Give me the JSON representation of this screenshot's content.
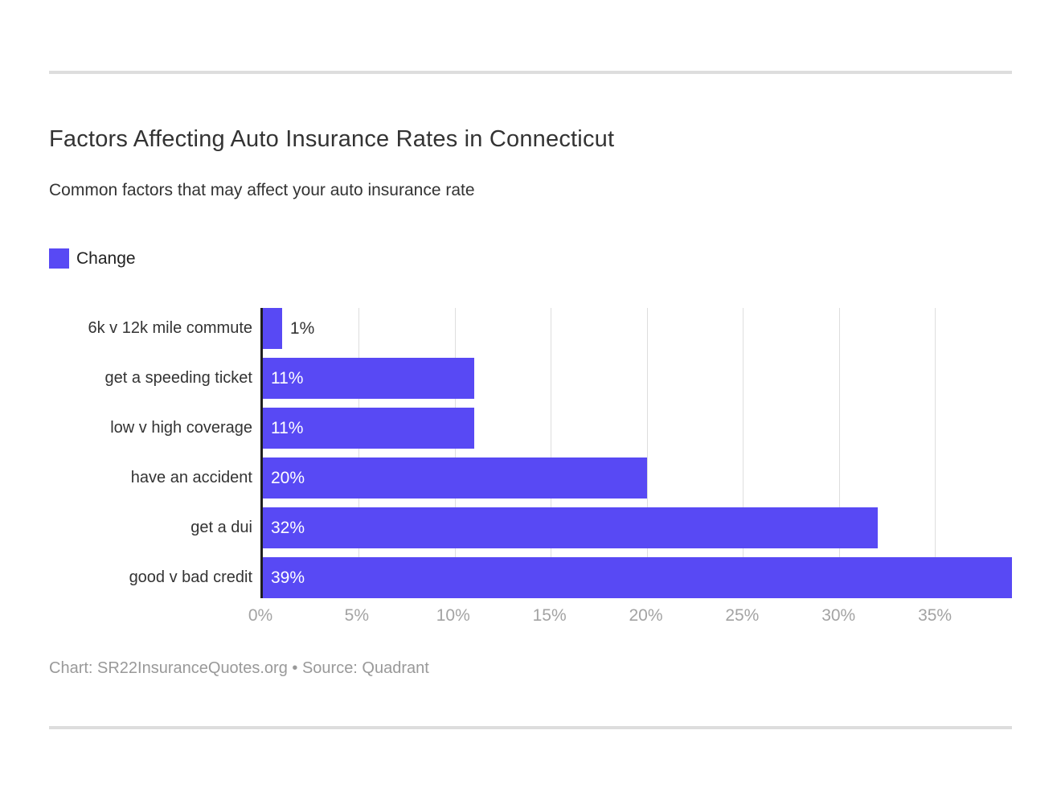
{
  "page": {
    "title": "Factors Affecting Auto Insurance Rates in Connecticut",
    "subtitle": "Common factors that may affect your auto insurance rate",
    "footer": "Chart: SR22InsuranceQuotes.org • Source: Quadrant"
  },
  "legend": {
    "label": "Change",
    "color": "#5849f4",
    "position": "top-left"
  },
  "chart_data": {
    "type": "bar",
    "orientation": "horizontal",
    "title": "Factors Affecting Auto Insurance Rates in Connecticut",
    "subtitle": "Common factors that may affect your auto insurance rate",
    "series_name": "Change",
    "categories": [
      "6k v 12k mile commute",
      "get a speeding ticket",
      "low v high coverage",
      "have an accident",
      "get a dui",
      "good v bad credit"
    ],
    "values": [
      1,
      11,
      11,
      20,
      32,
      39
    ],
    "value_labels": [
      "1%",
      "11%",
      "11%",
      "20%",
      "32%",
      "39%"
    ],
    "xlim": [
      0,
      39
    ],
    "x_ticks": [
      0,
      5,
      10,
      15,
      20,
      25,
      30,
      35
    ],
    "x_tick_labels": [
      "0%",
      "5%",
      "10%",
      "15%",
      "20%",
      "25%",
      "30%",
      "35%"
    ],
    "bar_color": "#5849f4",
    "axis_line_color": "#1f1f1f",
    "gridline_color": "#dedede",
    "grid": true,
    "legend_position": "top-left"
  }
}
